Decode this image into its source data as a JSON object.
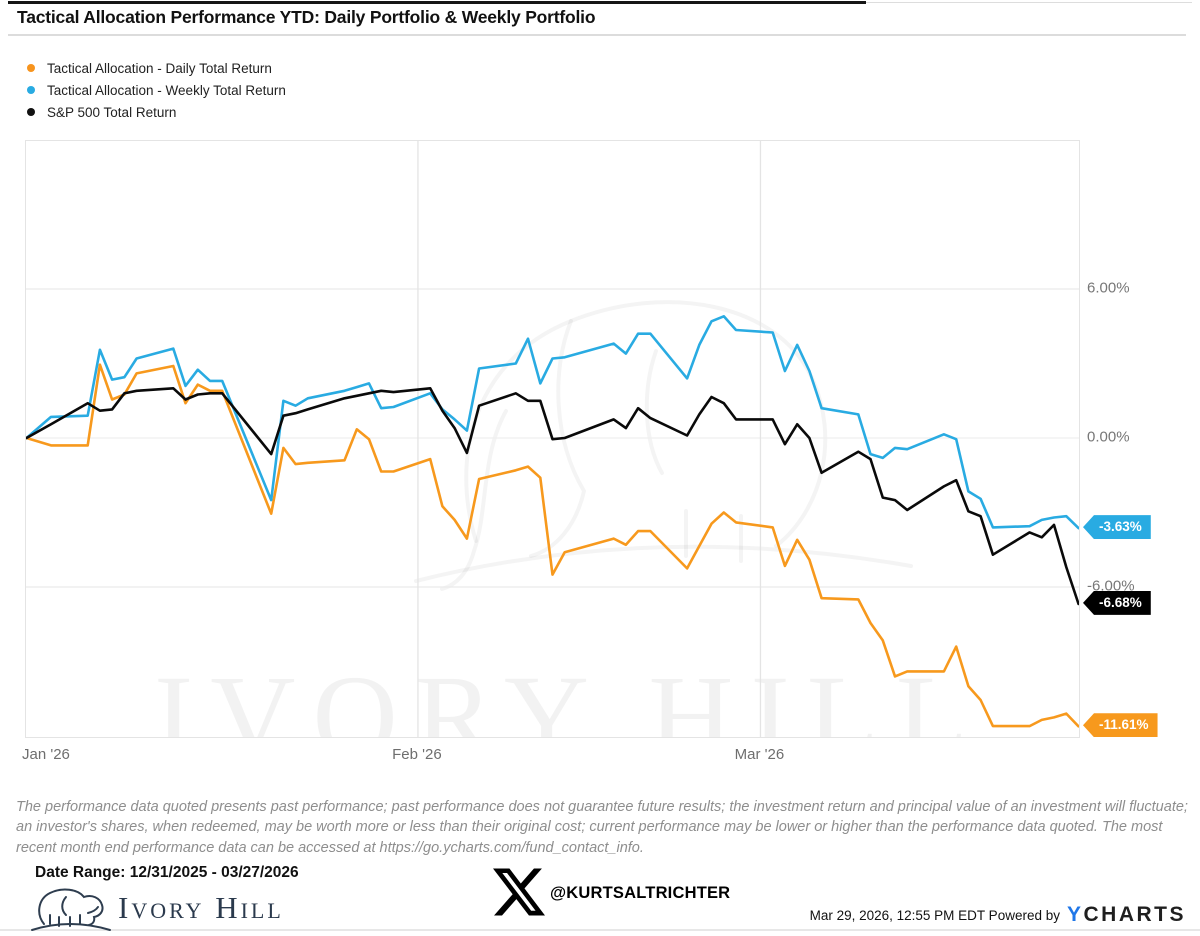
{
  "title": "Tactical Allocation Performance YTD: Daily Portfolio & Weekly Portfolio",
  "legend": [
    {
      "label": "Tactical Allocation - Daily Total Return",
      "color": "#F7941E"
    },
    {
      "label": "Tactical Allocation - Weekly Total Return",
      "color": "#29ABE2"
    },
    {
      "label": "S&P 500 Total Return",
      "color": "#111111"
    }
  ],
  "chart_data": {
    "type": "line",
    "title": "Tactical Allocation Performance YTD: Daily Portfolio & Weekly Portfolio",
    "x_axis": {
      "range": [
        "2025-12-31",
        "2026-03-27"
      ],
      "labels": [
        {
          "label": "Jan '26",
          "date": "2025-12-31",
          "align": "left"
        },
        {
          "label": "Feb '26",
          "date": "2026-02-01",
          "align": "center"
        },
        {
          "label": "Mar '26",
          "date": "2026-03-01",
          "align": "center"
        }
      ],
      "month_gridlines": [
        "2026-02-01",
        "2026-03-01"
      ]
    },
    "y_axis": {
      "ticks": [
        6,
        0,
        -6
      ],
      "tick_labels": [
        "6.00%",
        "0.00%",
        "-6.00%"
      ],
      "unit": "%",
      "ylim": [
        -12.1,
        11.95
      ],
      "grid": true
    },
    "dates": [
      "2025-12-31",
      "2026-01-02",
      "2026-01-05",
      "2026-01-06",
      "2026-01-07",
      "2026-01-08",
      "2026-01-09",
      "2026-01-12",
      "2026-01-13",
      "2026-01-14",
      "2026-01-15",
      "2026-01-16",
      "2026-01-20",
      "2026-01-21",
      "2026-01-22",
      "2026-01-23",
      "2026-01-26",
      "2026-01-27",
      "2026-01-28",
      "2026-01-29",
      "2026-01-30",
      "2026-02-02",
      "2026-02-03",
      "2026-02-04",
      "2026-02-05",
      "2026-02-06",
      "2026-02-09",
      "2026-02-10",
      "2026-02-11",
      "2026-02-12",
      "2026-02-13",
      "2026-02-17",
      "2026-02-18",
      "2026-02-19",
      "2026-02-20",
      "2026-02-23",
      "2026-02-24",
      "2026-02-25",
      "2026-02-26",
      "2026-02-27",
      "2026-03-02",
      "2026-03-03",
      "2026-03-04",
      "2026-03-05",
      "2026-03-06",
      "2026-03-09",
      "2026-03-10",
      "2026-03-11",
      "2026-03-12",
      "2026-03-13",
      "2026-03-16",
      "2026-03-17",
      "2026-03-18",
      "2026-03-19",
      "2026-03-20",
      "2026-03-23",
      "2026-03-24",
      "2026-03-25",
      "2026-03-26",
      "2026-03-27"
    ],
    "series": [
      {
        "name": "Tactical Allocation - Daily Total Return",
        "color": "#F7991D",
        "end_label": "-11.61%",
        "end_value": -11.61,
        "values": [
          0.0,
          -0.3,
          -0.3,
          2.95,
          1.55,
          1.75,
          2.6,
          2.9,
          1.4,
          2.15,
          1.9,
          1.9,
          -3.05,
          -0.4,
          -1.05,
          -1.0,
          -0.9,
          0.35,
          -0.05,
          -1.35,
          -1.35,
          -0.85,
          -2.75,
          -3.3,
          -4.05,
          -1.65,
          -1.3,
          -1.15,
          -1.6,
          -5.5,
          -4.6,
          -4.05,
          -4.3,
          -3.75,
          -3.75,
          -5.25,
          -4.35,
          -3.45,
          -3.0,
          -3.4,
          -3.6,
          -5.15,
          -4.1,
          -4.9,
          -6.45,
          -6.5,
          -7.45,
          -8.15,
          -9.6,
          -9.4,
          -9.4,
          -8.4,
          -10.0,
          -10.55,
          -11.6,
          -11.6,
          -11.35,
          -11.25,
          -11.1,
          -11.61
        ]
      },
      {
        "name": "Tactical Allocation - Weekly Total Return",
        "color": "#29ABE2",
        "end_label": "-3.63%",
        "end_value": -3.63,
        "values": [
          0.0,
          0.85,
          0.9,
          3.55,
          2.35,
          2.45,
          3.2,
          3.6,
          2.1,
          2.75,
          2.3,
          2.3,
          -2.5,
          1.5,
          1.3,
          1.6,
          1.9,
          2.05,
          2.2,
          1.2,
          1.25,
          1.8,
          1.15,
          0.75,
          0.3,
          2.8,
          3.0,
          4.0,
          2.2,
          3.2,
          3.25,
          3.8,
          3.4,
          4.2,
          4.2,
          2.4,
          3.75,
          4.7,
          4.9,
          4.35,
          4.25,
          2.7,
          3.75,
          2.7,
          1.2,
          0.95,
          -0.65,
          -0.8,
          -0.4,
          -0.45,
          0.15,
          -0.05,
          -2.15,
          -2.45,
          -3.6,
          -3.55,
          -3.3,
          -3.2,
          -3.15,
          -3.63
        ]
      },
      {
        "name": "S&P 500 Total Return",
        "color": "#0a0a0a",
        "end_label": "-6.68%",
        "end_value": -6.68,
        "values": [
          0.0,
          0.55,
          1.4,
          1.1,
          1.15,
          1.8,
          1.9,
          2.0,
          1.55,
          1.75,
          1.8,
          1.8,
          -0.65,
          0.9,
          1.0,
          1.15,
          1.6,
          1.7,
          1.8,
          1.9,
          1.85,
          2.0,
          1.1,
          0.4,
          -0.6,
          1.3,
          1.8,
          1.5,
          1.5,
          -0.05,
          0.0,
          0.75,
          0.4,
          1.2,
          0.8,
          0.1,
          0.95,
          1.65,
          1.4,
          0.75,
          0.75,
          -0.25,
          0.55,
          0.0,
          -1.4,
          -0.55,
          -0.85,
          -2.4,
          -2.5,
          -2.9,
          -1.95,
          -1.7,
          -2.95,
          -3.15,
          -4.7,
          -3.8,
          -4.0,
          -3.5,
          -5.2,
          -6.68
        ]
      }
    ]
  },
  "watermark": {
    "text": "IVORY HILL"
  },
  "disclaimer": "The performance data quoted presents past performance; past performance does not guarantee future results; the investment return and principal value of an investment will fluctuate; an investor's shares, when redeemed, may be worth more or less than their original cost; current performance may be lower or higher than the performance data quoted. The most recent month end performance data can be accessed at https://go.ycharts.com/fund_contact_info.",
  "footer": {
    "date_range_label": "Date Range: 12/31/2025 - 03/27/2026",
    "brand_name": "Ivory Hill",
    "x_handle": "@KURTSALTRICHTER",
    "timestamp_powered": "Mar 29, 2026, 12:55 PM EDT Powered by",
    "ycharts_y": "Y",
    "ycharts_rest": "CHARTS"
  }
}
